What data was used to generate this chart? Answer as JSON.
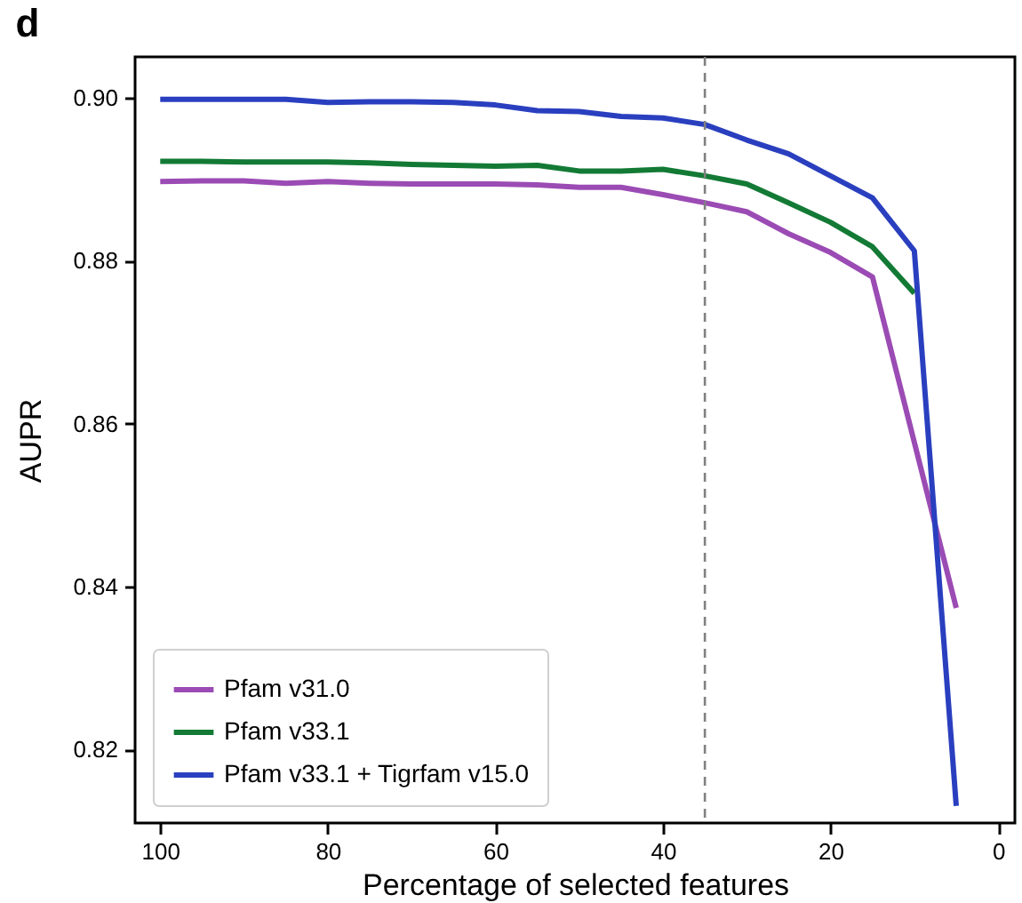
{
  "chart_data": {
    "type": "line",
    "title": "d",
    "xlabel": "Percentage of selected features",
    "ylabel": "AUPR",
    "xlim": [
      103,
      -2
    ],
    "ylim": [
      0.811,
      0.905
    ],
    "xticks": [
      100,
      80,
      60,
      40,
      20,
      0
    ],
    "yticks": [
      0.82,
      0.84,
      0.86,
      0.88,
      {
        "value": 0.9,
        "label": "0.90"
      }
    ],
    "grid": false,
    "legend": "bottom left",
    "marker": "none",
    "line_style": "solid",
    "ref_lines": [
      {
        "axis": "x",
        "value": 35,
        "color": "#808080",
        "line_style": "dashed"
      }
    ],
    "series": [
      {
        "name": "Pfam v31.0",
        "color": "#9b4bb4",
        "x": [
          100,
          95,
          90,
          85,
          80,
          75,
          70,
          65,
          60,
          55,
          50,
          45,
          40,
          35,
          30,
          25,
          20,
          15,
          5
        ],
        "values": [
          0.8897,
          0.8898,
          0.8898,
          0.8895,
          0.8897,
          0.8895,
          0.8894,
          0.8894,
          0.8894,
          0.8893,
          0.889,
          0.889,
          0.8881,
          0.8871,
          0.886,
          0.8833,
          0.881,
          0.878,
          0.8374
        ]
      },
      {
        "name": "Pfam v33.1",
        "color": "#137a35",
        "x": [
          100,
          95,
          90,
          85,
          80,
          75,
          70,
          65,
          60,
          55,
          50,
          45,
          40,
          35,
          30,
          25,
          20,
          15,
          10
        ],
        "values": [
          0.8922,
          0.8922,
          0.8921,
          0.8921,
          0.8921,
          0.892,
          0.8918,
          0.8917,
          0.8916,
          0.8917,
          0.891,
          0.891,
          0.8912,
          0.8904,
          0.8894,
          0.8871,
          0.8847,
          0.8817,
          0.876
        ]
      },
      {
        "name": "Pfam v33.1 + Tigrfam v15.0",
        "color": "#2a3fbf",
        "x": [
          100,
          95,
          90,
          85,
          80,
          75,
          70,
          65,
          60,
          55,
          50,
          45,
          40,
          35,
          30,
          25,
          20,
          15,
          10,
          5
        ],
        "values": [
          0.8998,
          0.8998,
          0.8998,
          0.8998,
          0.8994,
          0.8995,
          0.8995,
          0.8994,
          0.8991,
          0.8984,
          0.8983,
          0.8977,
          0.8975,
          0.8967,
          0.8948,
          0.8931,
          0.8904,
          0.8877,
          0.8812,
          0.8131
        ]
      }
    ]
  }
}
